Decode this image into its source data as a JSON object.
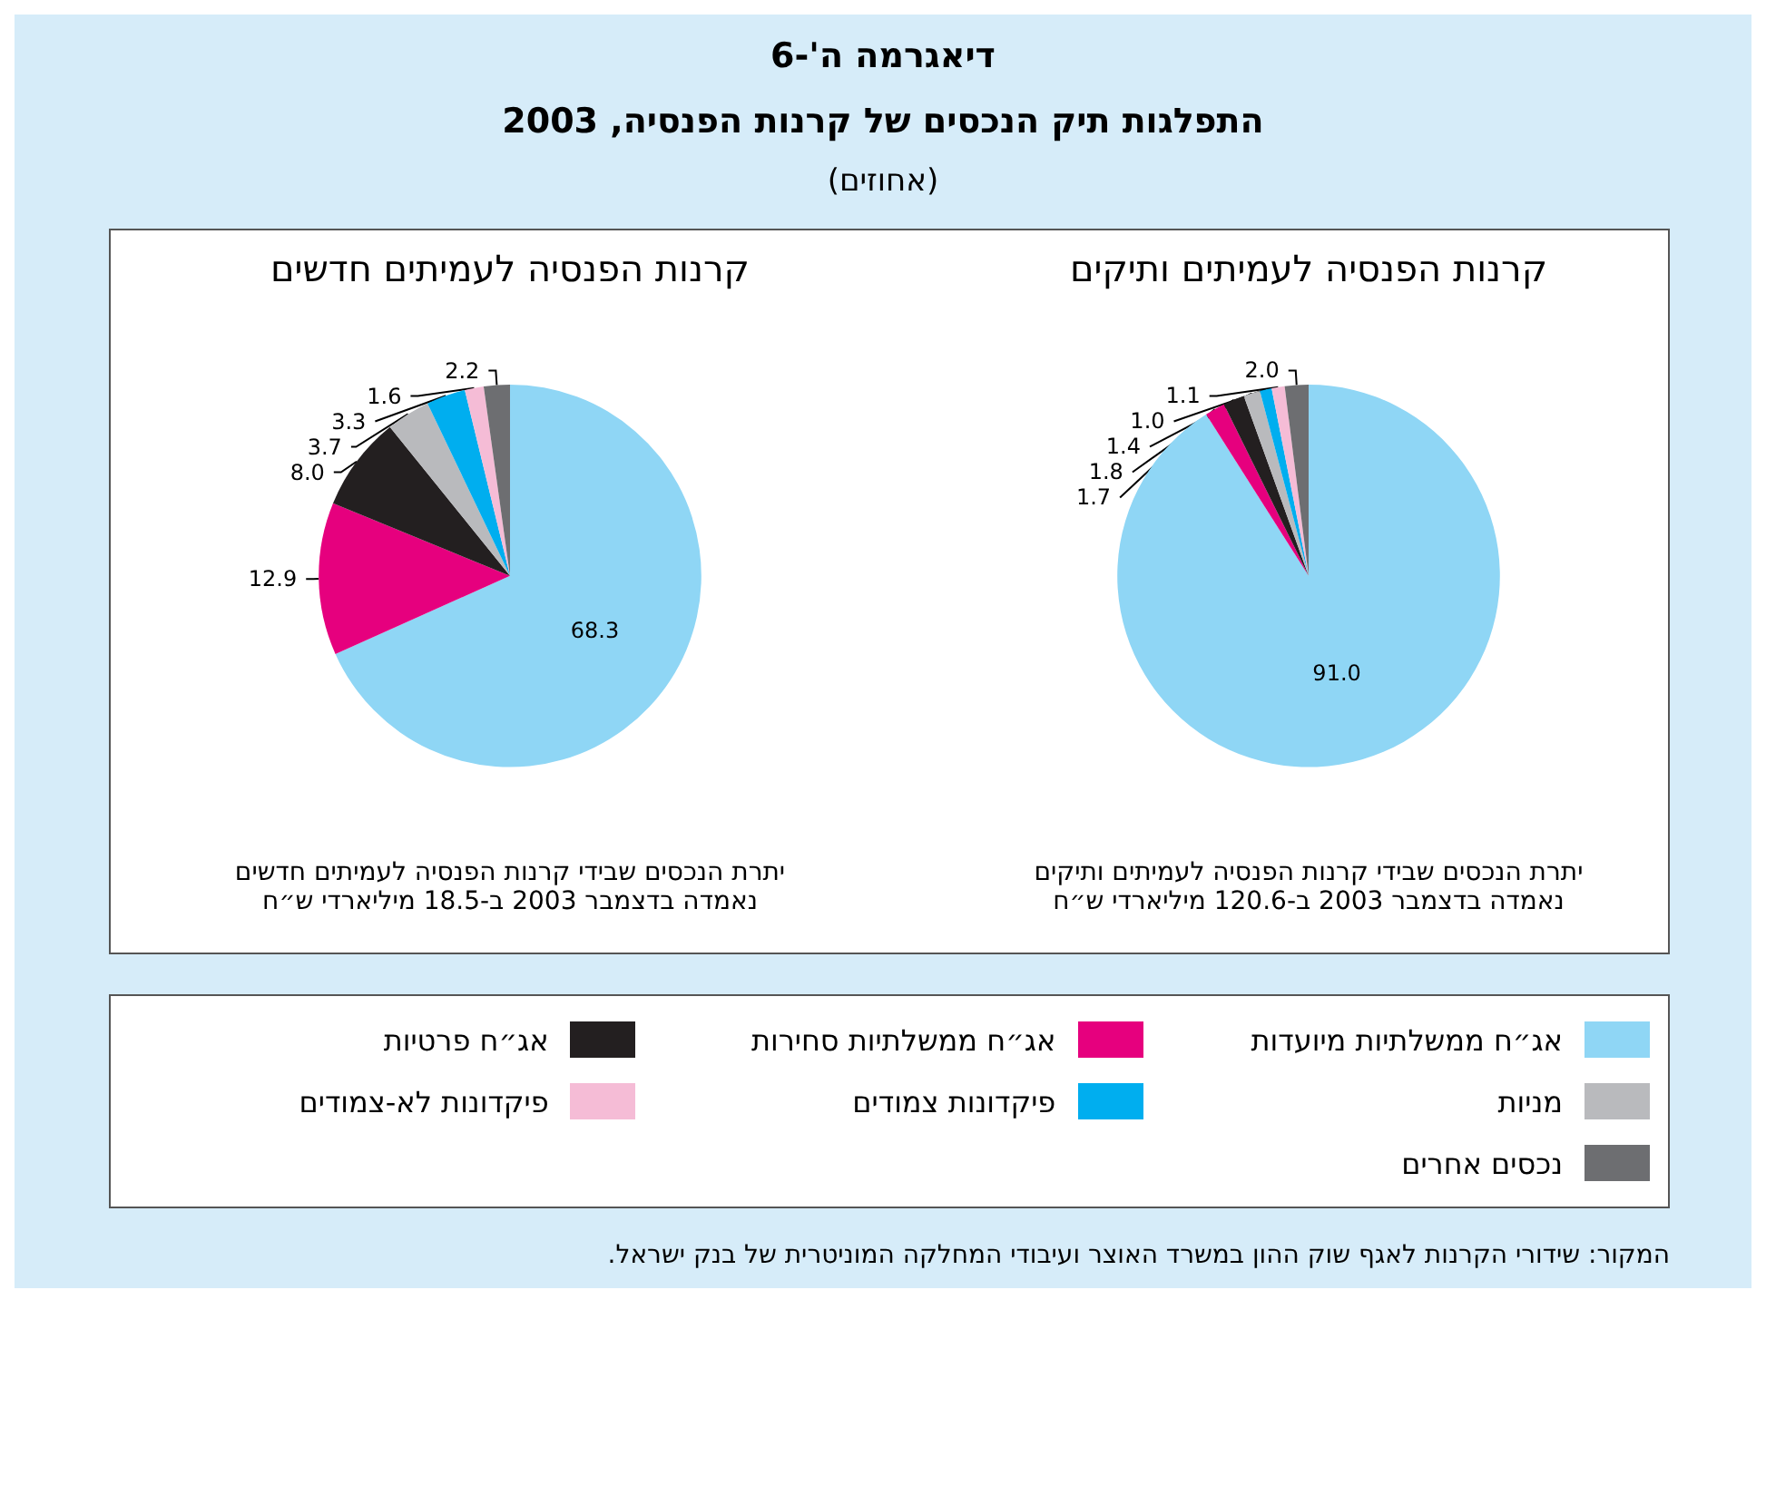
{
  "chart_data": {
    "type": "pie",
    "title": "דיאגרמה ה'-6",
    "subtitle": "התפלגות תיק הנכסים של קרנות הפנסיה, 2003",
    "categories": [
      "אג״ח ממשלתיות מיועדות",
      "אג״ח ממשלתיות סחירות",
      "אג״ח פרטיות",
      "מניות",
      "פיקדונות צמודים",
      "פיקדונות לא-צמודים",
      "נכסים אחרים"
    ],
    "colors": [
      "#8fd6f5",
      "#e6007e",
      "#231f20",
      "#b9babd",
      "#00aeef",
      "#f5bcd6",
      "#6d6e71"
    ],
    "series": [
      {
        "name": "קרנות הפנסיה לעמיתים ותיקים",
        "values": [
          91.0,
          1.7,
          1.8,
          1.4,
          1.0,
          1.1,
          2.0
        ],
        "value_labels": [
          "91.0",
          "1.7",
          "1.8",
          "1.4",
          "1.0",
          "1.1",
          "2.0"
        ]
      },
      {
        "name": "קרנות הפנסיה לעמיתים חדשים",
        "values": [
          68.3,
          12.9,
          8.0,
          3.7,
          3.3,
          1.6,
          2.2
        ],
        "value_labels": [
          "68.3",
          "12.9",
          "8.0",
          "3.7",
          "3.3",
          "1.6",
          "2.2"
        ]
      }
    ],
    "legend": "bottom",
    "annotations": [
      "(אחוזים)",
      "יתרת הנכסים שבידי קרנות הפנסיה לעמיתים ותיקים נאמדה בדצמבר 2003 ב-120.6 מיליארדי ש״ח",
      "יתרת הנכסים שבידי קרנות הפנסיה לעמיתים חדשים נאמדה בדצמבר 2003 ב-18.5 מיליארדי ש״ח",
      "המקור: שידורי הקרנות לאגף שוק ההון במשרד האוצר ועיבודי המחלקה המוניטרית של בנק ישראל."
    ]
  }
}
